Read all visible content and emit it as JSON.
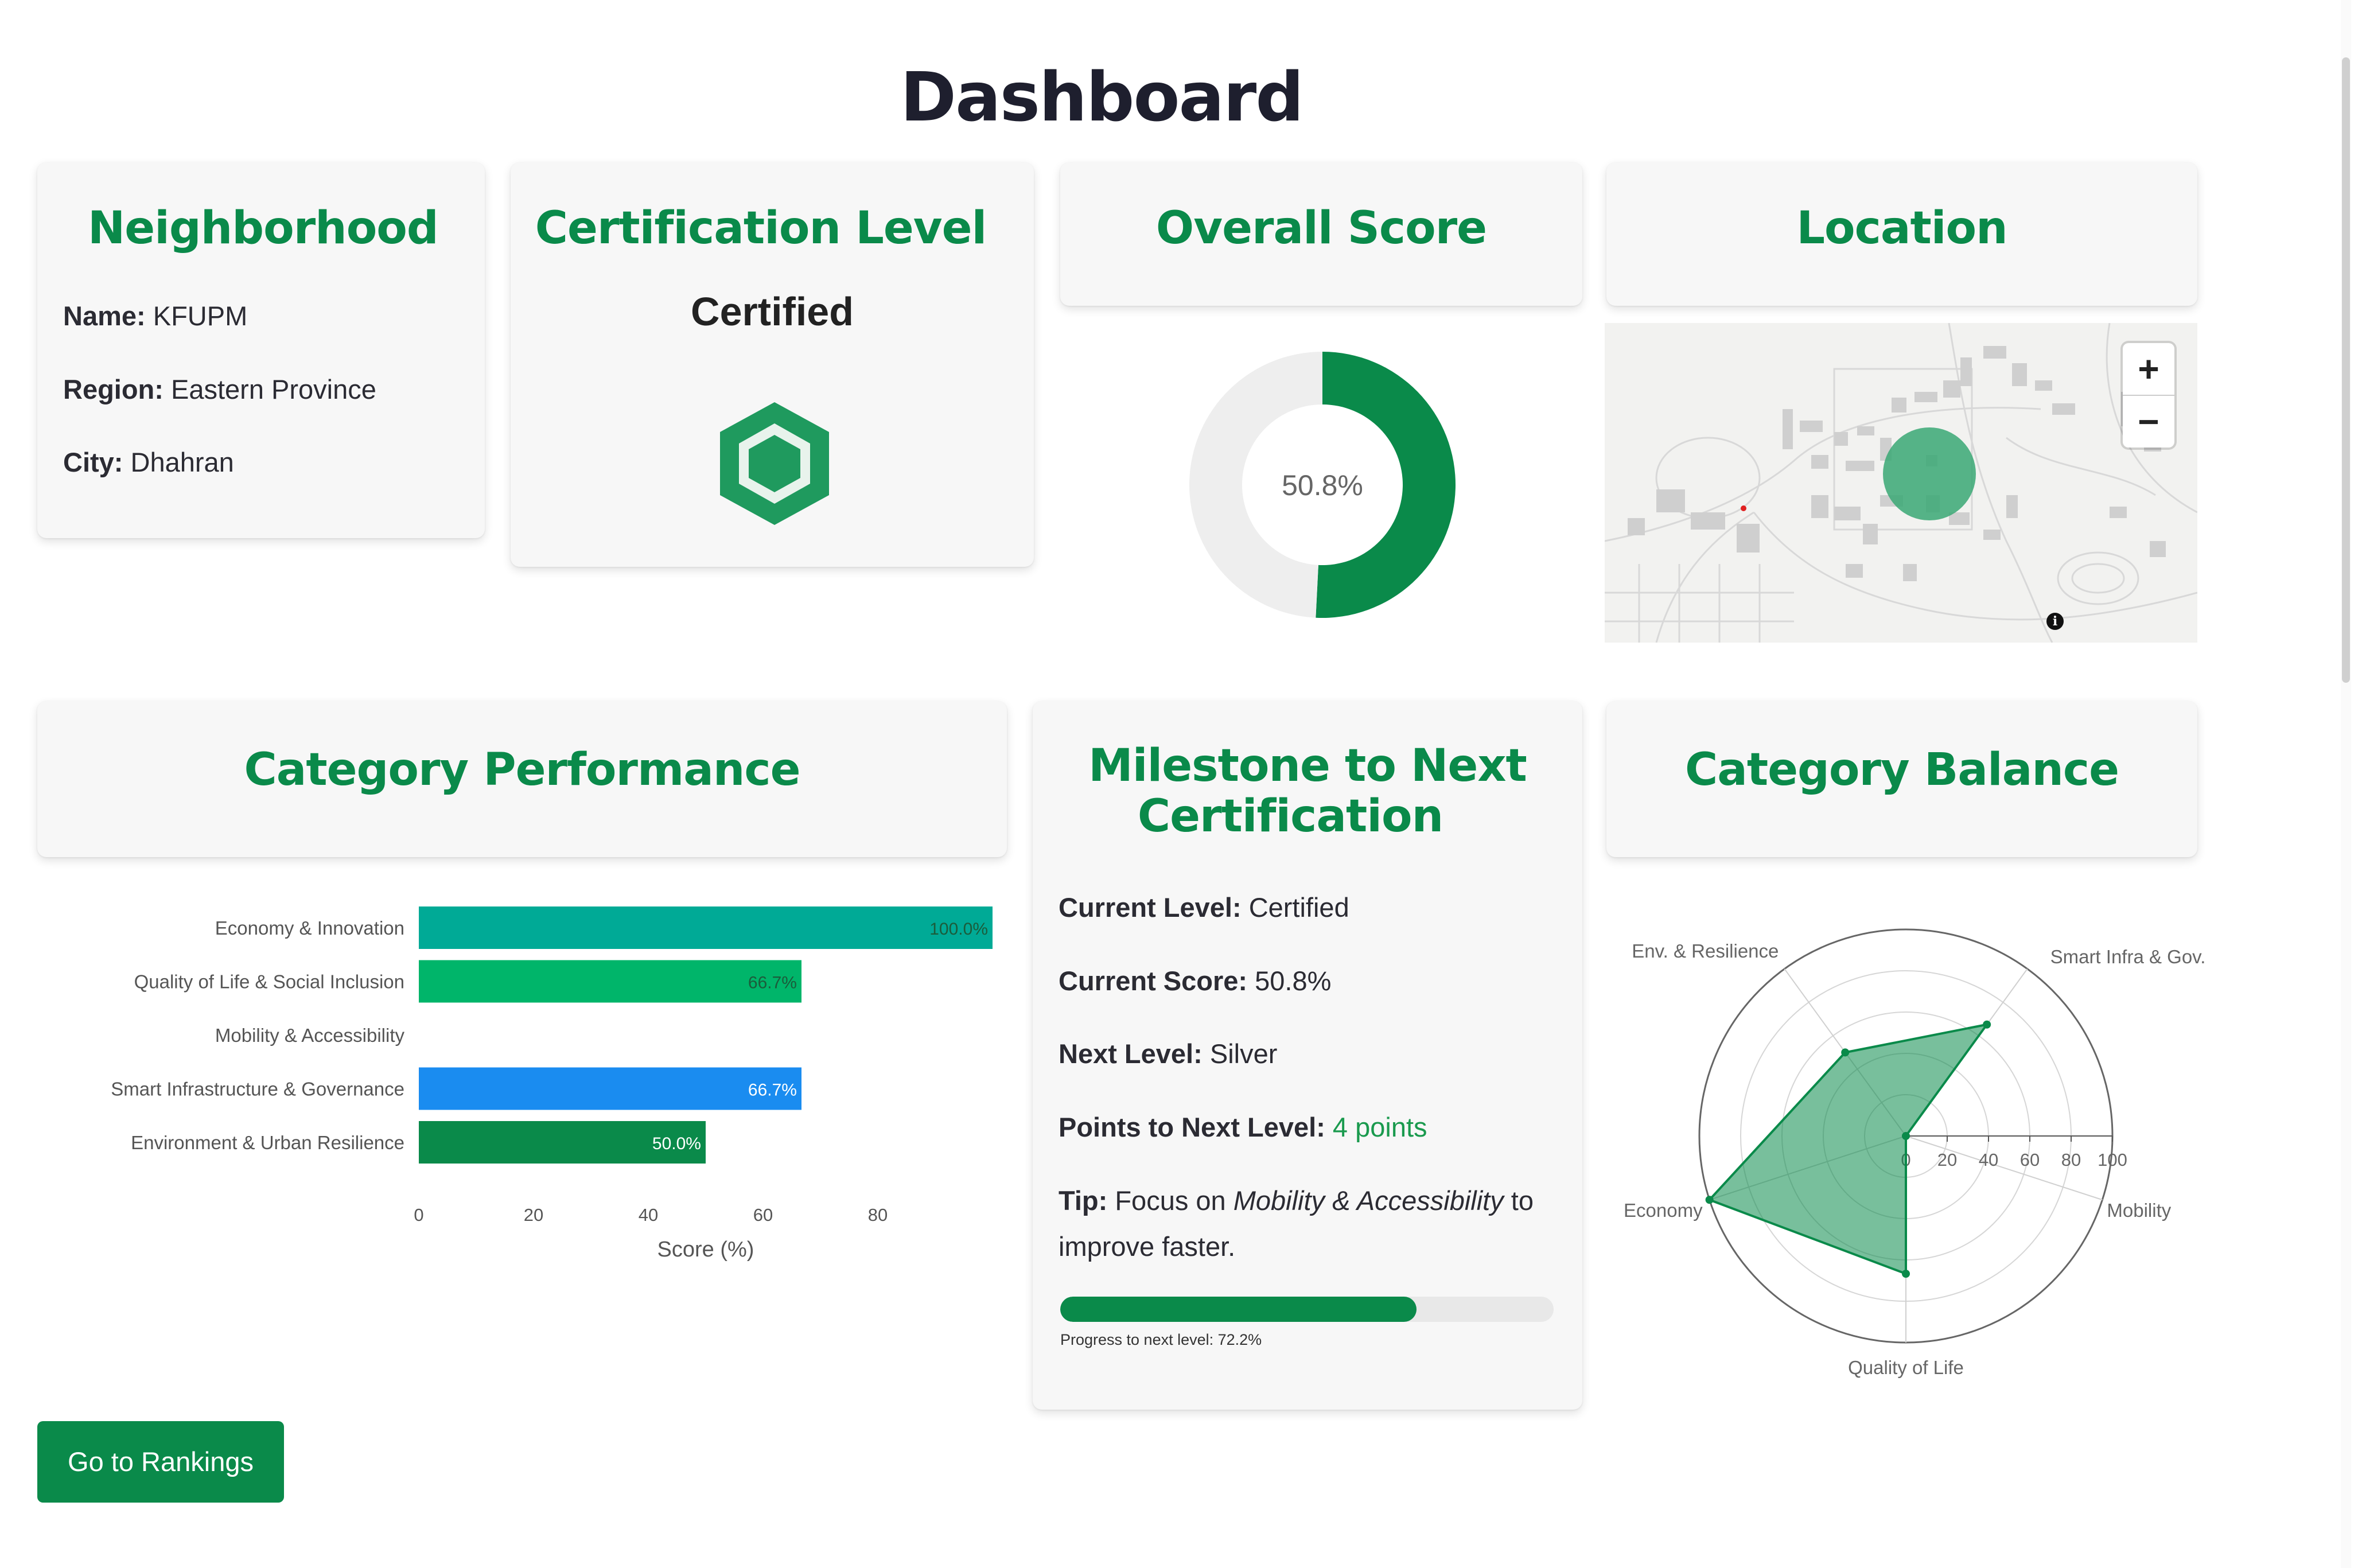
{
  "page": {
    "title": "Dashboard"
  },
  "neighborhood": {
    "title": "Neighborhood",
    "name_label": "Name:",
    "name_value": "KFUPM",
    "region_label": "Region:",
    "region_value": "Eastern Province",
    "city_label": "City:",
    "city_value": "Dhahran"
  },
  "certification": {
    "title": "Certification Level",
    "value": "Certified",
    "icon": "hexagon-badge-icon",
    "color": "#1f9a5e"
  },
  "overall": {
    "title": "Overall Score",
    "label": "50.8%"
  },
  "location": {
    "title": "Location",
    "zoom_in": "+",
    "zoom_out": "−",
    "info": "i"
  },
  "category_performance": {
    "title": "Category Performance"
  },
  "milestone": {
    "title_line1": "Milestone to Next",
    "title_line2": "Certification",
    "current_level_label": "Current Level:",
    "current_level_value": "Certified",
    "current_score_label": "Current Score:",
    "current_score_value": "50.8%",
    "next_level_label": "Next Level:",
    "next_level_value": "Silver",
    "points_label": "Points to Next Level:",
    "points_value": "4 points",
    "tip_label": "Tip:",
    "tip_pre": "Focus on",
    "tip_focus": "Mobility & Accessibility",
    "tip_post": "to",
    "tip_line2": "improve faster.",
    "progress_label": "Progress to next level: 72.2%",
    "progress": 0.722
  },
  "category_balance": {
    "title": "Category Balance"
  },
  "actions": {
    "rankings_label": "Go to Rankings"
  },
  "chart_data": [
    {
      "type": "pie",
      "values": [
        50.8,
        49.2
      ],
      "center_label": "50.8%",
      "colors": [
        "#0a8a4a",
        "#eeeeee"
      ]
    },
    {
      "type": "bar",
      "orientation": "horizontal",
      "categories": [
        "Economy & Innovation",
        "Quality of Life & Social Inclusion",
        "Mobility & Accessibility",
        "Smart Infrastructure & Governance",
        "Environment & Urban Resilience"
      ],
      "values": [
        100.0,
        66.7,
        0,
        66.7,
        50.0
      ],
      "value_labels": [
        "100.0%",
        "66.7%",
        "",
        "66.7%",
        "50.0%"
      ],
      "colors": [
        "#00aa96",
        "#00b56a",
        "#cccccc",
        "#1a8cf0",
        "#0a8a4a"
      ],
      "xlabel": "Score (%)",
      "xlim": [
        0,
        100
      ],
      "xticks": [
        0,
        20,
        40,
        60,
        80
      ]
    },
    {
      "type": "radar",
      "axes": [
        "Smart Infra & Gov.",
        "Mobility",
        "Quality of Life",
        "Economy",
        "Env. & Resilience"
      ],
      "values": [
        66.7,
        0,
        66.7,
        100,
        50
      ],
      "rlim": [
        0,
        100
      ],
      "rticks": [
        0,
        20,
        40,
        60,
        80,
        100
      ],
      "color": "#0a8a4a"
    }
  ]
}
